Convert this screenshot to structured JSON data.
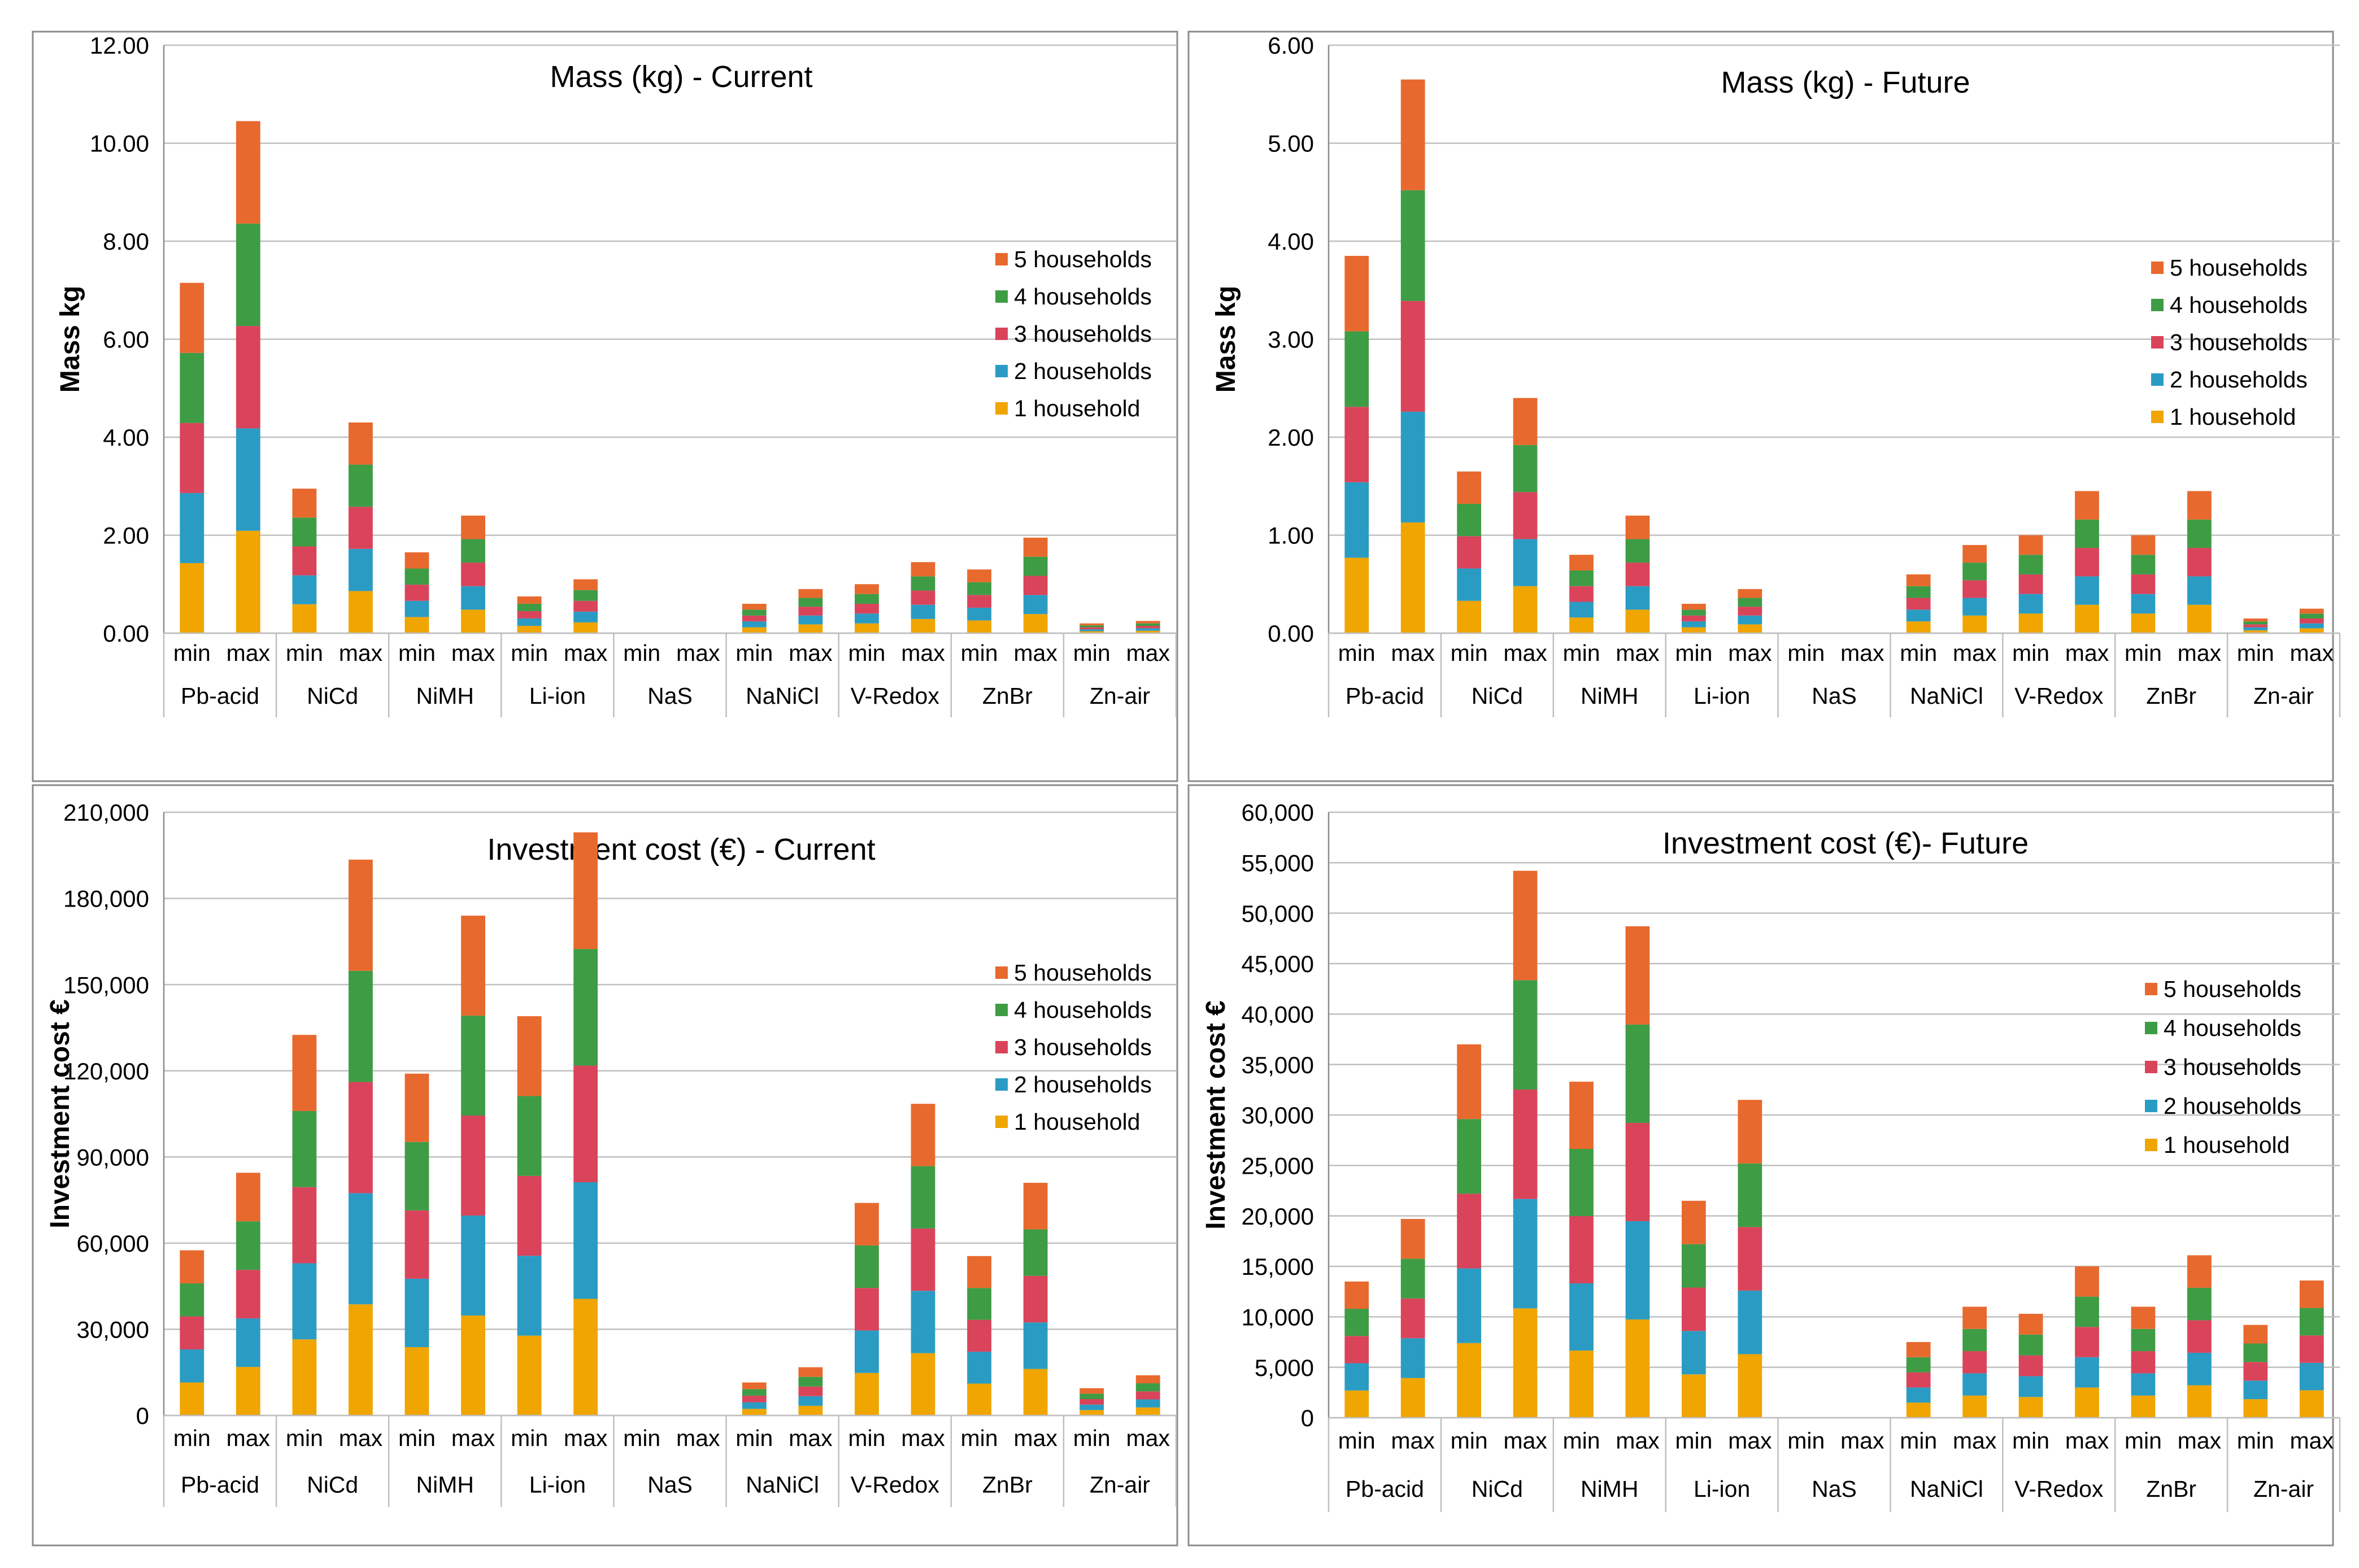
{
  "legend": {
    "items": [
      "5 households",
      "4 households",
      "3 households",
      "2 households",
      "1 household"
    ]
  },
  "colors": {
    "5 households": "#E8692E",
    "4 households": "#3E9C45",
    "3 households": "#D9445B",
    "2 households": "#2A9CC4",
    "1 household": "#F0A500",
    "grid": "#BFBFBF",
    "frame": "#8C8C8C"
  },
  "chart_data": [
    {
      "type": "bar",
      "stacked": true,
      "title": "Mass (kg) - Current",
      "ylabel": "Mass kg",
      "xlabel": "",
      "ylim": [
        0,
        12
      ],
      "y_ticks": [
        "0.00",
        "2.00",
        "4.00",
        "6.00",
        "8.00",
        "10.00",
        "12.00"
      ],
      "groups": [
        "Pb-acid",
        "NiCd",
        "NiMH",
        "Li-ion",
        "NaS",
        "NaNiCl",
        "V-Redox",
        "ZnBr",
        "Zn-air"
      ],
      "subcategories": [
        "min",
        "max"
      ],
      "legend_position": "right",
      "totals": [
        7.15,
        10.45,
        2.93,
        4.3,
        1.65,
        2.4,
        0.76,
        1.12,
        0,
        0,
        0.6,
        0.88,
        0.98,
        1.43,
        1.3,
        1.93,
        0.18,
        0.25
      ],
      "series": [
        {
          "name": "1 household",
          "values": [
            1.43,
            2.09,
            0.59,
            0.86,
            0.33,
            0.48,
            0.15,
            0.22,
            0,
            0,
            0.12,
            0.18,
            0.2,
            0.29,
            0.26,
            0.39,
            0.04,
            0.05
          ]
        },
        {
          "name": "2 households",
          "values": [
            1.43,
            2.09,
            0.59,
            0.86,
            0.33,
            0.48,
            0.15,
            0.22,
            0,
            0,
            0.12,
            0.18,
            0.2,
            0.29,
            0.26,
            0.39,
            0.04,
            0.05
          ]
        },
        {
          "name": "3 households",
          "values": [
            1.43,
            2.09,
            0.59,
            0.86,
            0.33,
            0.48,
            0.15,
            0.22,
            0,
            0,
            0.12,
            0.18,
            0.2,
            0.29,
            0.26,
            0.39,
            0.04,
            0.05
          ]
        },
        {
          "name": "4 households",
          "values": [
            1.43,
            2.09,
            0.59,
            0.86,
            0.33,
            0.48,
            0.15,
            0.22,
            0,
            0,
            0.12,
            0.18,
            0.2,
            0.29,
            0.26,
            0.39,
            0.04,
            0.05
          ]
        },
        {
          "name": "5 households",
          "values": [
            1.43,
            2.09,
            0.59,
            0.86,
            0.33,
            0.48,
            0.15,
            0.22,
            0,
            0,
            0.12,
            0.18,
            0.2,
            0.29,
            0.26,
            0.39,
            0.04,
            0.05
          ]
        }
      ]
    },
    {
      "type": "bar",
      "stacked": true,
      "title": "Mass (kg) - Future",
      "ylabel": "Mass kg",
      "xlabel": "",
      "ylim": [
        0,
        6
      ],
      "y_ticks": [
        "0.00",
        "1.00",
        "2.00",
        "3.00",
        "4.00",
        "5.00",
        "6.00"
      ],
      "groups": [
        "Pb-acid",
        "NiCd",
        "NiMH",
        "Li-ion",
        "NaS",
        "NaNiCl",
        "V-Redox",
        "ZnBr",
        "Zn-air"
      ],
      "subcategories": [
        "min",
        "max"
      ],
      "legend_position": "right",
      "totals": [
        3.86,
        5.63,
        1.65,
        2.42,
        0.81,
        1.2,
        0.3,
        0.44,
        0,
        0,
        0.61,
        0.9,
        0.98,
        1.44,
        0.98,
        1.45,
        0.17,
        0.26
      ],
      "series": [
        {
          "name": "1 household",
          "values": [
            0.77,
            1.13,
            0.33,
            0.48,
            0.16,
            0.24,
            0.06,
            0.09,
            0,
            0,
            0.12,
            0.18,
            0.2,
            0.29,
            0.2,
            0.29,
            0.03,
            0.05
          ]
        },
        {
          "name": "2 households",
          "values": [
            0.77,
            1.13,
            0.33,
            0.48,
            0.16,
            0.24,
            0.06,
            0.09,
            0,
            0,
            0.12,
            0.18,
            0.2,
            0.29,
            0.2,
            0.29,
            0.03,
            0.05
          ]
        },
        {
          "name": "3 households",
          "values": [
            0.77,
            1.13,
            0.33,
            0.48,
            0.16,
            0.24,
            0.06,
            0.09,
            0,
            0,
            0.12,
            0.18,
            0.2,
            0.29,
            0.2,
            0.29,
            0.03,
            0.05
          ]
        },
        {
          "name": "4 households",
          "values": [
            0.77,
            1.13,
            0.33,
            0.48,
            0.16,
            0.24,
            0.06,
            0.09,
            0,
            0,
            0.12,
            0.18,
            0.2,
            0.29,
            0.2,
            0.29,
            0.03,
            0.05
          ]
        },
        {
          "name": "5 households",
          "values": [
            0.77,
            1.13,
            0.33,
            0.48,
            0.16,
            0.24,
            0.06,
            0.09,
            0,
            0,
            0.12,
            0.18,
            0.2,
            0.29,
            0.2,
            0.29,
            0.03,
            0.05
          ]
        }
      ]
    },
    {
      "type": "bar",
      "stacked": true,
      "title": "Investment cost (€) - Current",
      "ylabel": "Investment cost €",
      "xlabel": "",
      "ylim": [
        0,
        210000
      ],
      "y_ticks": [
        "0",
        "30,000",
        "60,000",
        "90,000",
        "120,000",
        "150,000",
        "180,000",
        "210,000"
      ],
      "groups": [
        "Pb-acid",
        "NiCd",
        "NiMH",
        "Li-ion",
        "NaS",
        "NaNiCl",
        "V-Redox",
        "ZnBr",
        "Zn-air"
      ],
      "subcategories": [
        "min",
        "max"
      ],
      "legend_position": "right",
      "totals": [
        57500,
        84500,
        132500,
        193500,
        119000,
        174000,
        139000,
        203000,
        0,
        0,
        11500,
        16800,
        74000,
        108500,
        55500,
        81000,
        9500,
        14000
      ],
      "series": [
        {
          "name": "1 household",
          "values": [
            11500,
            16900,
            26500,
            38700,
            23800,
            34800,
            27800,
            40600,
            0,
            0,
            2300,
            3360,
            14800,
            21700,
            11100,
            16200,
            1900,
            2800
          ]
        },
        {
          "name": "2 households",
          "values": [
            11500,
            16900,
            26500,
            38700,
            23800,
            34800,
            27800,
            40600,
            0,
            0,
            2300,
            3360,
            14800,
            21700,
            11100,
            16200,
            1900,
            2800
          ]
        },
        {
          "name": "3 households",
          "values": [
            11500,
            16900,
            26500,
            38700,
            23800,
            34800,
            27800,
            40600,
            0,
            0,
            2300,
            3360,
            14800,
            21700,
            11100,
            16200,
            1900,
            2800
          ]
        },
        {
          "name": "4 households",
          "values": [
            11500,
            16900,
            26500,
            38700,
            23800,
            34800,
            27800,
            40600,
            0,
            0,
            2300,
            3360,
            14800,
            21700,
            11100,
            16200,
            1900,
            2800
          ]
        },
        {
          "name": "5 households",
          "values": [
            11500,
            16900,
            26500,
            38700,
            23800,
            34800,
            27800,
            40600,
            0,
            0,
            2300,
            3360,
            14800,
            21700,
            11100,
            16200,
            1900,
            2800
          ]
        }
      ]
    },
    {
      "type": "bar",
      "stacked": true,
      "title": "Investment cost (€)- Future",
      "ylabel": "Investment cost €",
      "xlabel": "",
      "ylim": [
        0,
        60000
      ],
      "y_ticks": [
        "0",
        "5,000",
        "10,000",
        "15,000",
        "20,000",
        "25,000",
        "30,000",
        "35,000",
        "40,000",
        "45,000",
        "50,000",
        "55,000",
        "60,000"
      ],
      "groups": [
        "Pb-acid",
        "NiCd",
        "NiMH",
        "Li-ion",
        "NaS",
        "NaNiCl",
        "V-Redox",
        "ZnBr",
        "Zn-air"
      ],
      "subcategories": [
        "min",
        "max"
      ],
      "legend_position": "right",
      "totals": [
        13500,
        19700,
        37000,
        54200,
        33300,
        48700,
        21500,
        31500,
        0,
        0,
        7500,
        11000,
        10300,
        15000,
        11000,
        16100,
        9200,
        13600
      ],
      "series": [
        {
          "name": "1 household",
          "values": [
            2700,
            3940,
            7400,
            10840,
            6660,
            9740,
            4300,
            6300,
            0,
            0,
            1500,
            2200,
            2060,
            3000,
            2200,
            3220,
            1840,
            2720
          ]
        },
        {
          "name": "2 households",
          "values": [
            2700,
            3940,
            7400,
            10840,
            6660,
            9740,
            4300,
            6300,
            0,
            0,
            1500,
            2200,
            2060,
            3000,
            2200,
            3220,
            1840,
            2720
          ]
        },
        {
          "name": "3 households",
          "values": [
            2700,
            3940,
            7400,
            10840,
            6660,
            9740,
            4300,
            6300,
            0,
            0,
            1500,
            2200,
            2060,
            3000,
            2200,
            3220,
            1840,
            2720
          ]
        },
        {
          "name": "4 households",
          "values": [
            2700,
            3940,
            7400,
            10840,
            6660,
            9740,
            4300,
            6300,
            0,
            0,
            1500,
            2200,
            2060,
            3000,
            2200,
            3220,
            1840,
            2720
          ]
        },
        {
          "name": "5 households",
          "values": [
            2700,
            3940,
            7400,
            10840,
            6660,
            9740,
            4300,
            6300,
            0,
            0,
            1500,
            2200,
            2060,
            3000,
            2200,
            3220,
            1840,
            2720
          ]
        }
      ]
    }
  ]
}
